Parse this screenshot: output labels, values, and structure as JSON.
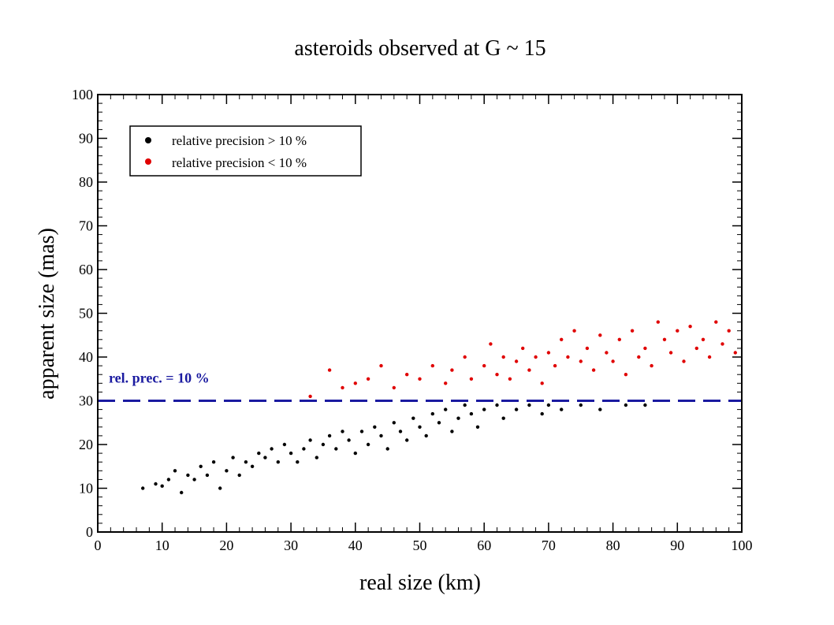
{
  "chart_data": {
    "type": "scatter",
    "title": "asteroids observed at G ~ 15",
    "xlabel": "real size   (km)",
    "ylabel": "apparent size  (mas)",
    "xlim": [
      0,
      100
    ],
    "ylim": [
      0,
      100
    ],
    "x_ticks": [
      "0",
      "10",
      "20",
      "30",
      "40",
      "50",
      "60",
      "70",
      "80",
      "90",
      "100"
    ],
    "y_ticks": [
      "0",
      "10",
      "20",
      "30",
      "40",
      "50",
      "60",
      "70",
      "80",
      "90",
      "100"
    ],
    "grid": false,
    "legend_position": "top-left",
    "series": [
      {
        "name": "relative precision > 10 %",
        "color": "#000000",
        "points": [
          [
            7,
            10
          ],
          [
            9,
            11
          ],
          [
            10,
            10.5
          ],
          [
            11,
            12
          ],
          [
            12,
            14
          ],
          [
            13,
            9
          ],
          [
            14,
            13
          ],
          [
            15,
            12
          ],
          [
            16,
            15
          ],
          [
            17,
            13
          ],
          [
            18,
            16
          ],
          [
            19,
            10
          ],
          [
            20,
            14
          ],
          [
            21,
            17
          ],
          [
            22,
            13
          ],
          [
            23,
            16
          ],
          [
            24,
            15
          ],
          [
            25,
            18
          ],
          [
            26,
            17
          ],
          [
            27,
            19
          ],
          [
            28,
            16
          ],
          [
            29,
            20
          ],
          [
            30,
            18
          ],
          [
            31,
            16
          ],
          [
            32,
            19
          ],
          [
            33,
            21
          ],
          [
            34,
            17
          ],
          [
            35,
            20
          ],
          [
            36,
            22
          ],
          [
            37,
            19
          ],
          [
            38,
            23
          ],
          [
            39,
            21
          ],
          [
            40,
            18
          ],
          [
            41,
            23
          ],
          [
            42,
            20
          ],
          [
            43,
            24
          ],
          [
            44,
            22
          ],
          [
            45,
            19
          ],
          [
            46,
            25
          ],
          [
            47,
            23
          ],
          [
            48,
            21
          ],
          [
            49,
            26
          ],
          [
            50,
            24
          ],
          [
            51,
            22
          ],
          [
            52,
            27
          ],
          [
            53,
            25
          ],
          [
            54,
            28
          ],
          [
            55,
            23
          ],
          [
            56,
            26
          ],
          [
            57,
            29
          ],
          [
            58,
            27
          ],
          [
            59,
            24
          ],
          [
            60,
            28
          ],
          [
            62,
            29
          ],
          [
            63,
            26
          ],
          [
            65,
            28
          ],
          [
            67,
            29
          ],
          [
            69,
            27
          ],
          [
            70,
            29
          ],
          [
            72,
            28
          ],
          [
            75,
            29
          ],
          [
            78,
            28
          ],
          [
            82,
            29
          ],
          [
            85,
            29
          ]
        ]
      },
      {
        "name": "relative precision < 10 %",
        "color": "#e00000",
        "points": [
          [
            33,
            31
          ],
          [
            36,
            37
          ],
          [
            38,
            33
          ],
          [
            40,
            34
          ],
          [
            42,
            35
          ],
          [
            44,
            38
          ],
          [
            46,
            33
          ],
          [
            48,
            36
          ],
          [
            50,
            35
          ],
          [
            52,
            38
          ],
          [
            54,
            34
          ],
          [
            55,
            37
          ],
          [
            57,
            40
          ],
          [
            58,
            35
          ],
          [
            60,
            38
          ],
          [
            61,
            43
          ],
          [
            62,
            36
          ],
          [
            63,
            40
          ],
          [
            64,
            35
          ],
          [
            65,
            39
          ],
          [
            66,
            42
          ],
          [
            67,
            37
          ],
          [
            68,
            40
          ],
          [
            69,
            34
          ],
          [
            70,
            41
          ],
          [
            71,
            38
          ],
          [
            72,
            44
          ],
          [
            73,
            40
          ],
          [
            74,
            46
          ],
          [
            75,
            39
          ],
          [
            76,
            42
          ],
          [
            77,
            37
          ],
          [
            78,
            45
          ],
          [
            79,
            41
          ],
          [
            80,
            39
          ],
          [
            81,
            44
          ],
          [
            82,
            36
          ],
          [
            83,
            46
          ],
          [
            84,
            40
          ],
          [
            85,
            42
          ],
          [
            86,
            38
          ],
          [
            87,
            48
          ],
          [
            88,
            44
          ],
          [
            89,
            41
          ],
          [
            90,
            46
          ],
          [
            91,
            39
          ],
          [
            92,
            47
          ],
          [
            93,
            42
          ],
          [
            94,
            44
          ],
          [
            95,
            40
          ],
          [
            96,
            48
          ],
          [
            97,
            43
          ],
          [
            98,
            46
          ],
          [
            99,
            41
          ]
        ]
      }
    ],
    "reference_line": {
      "y": 30,
      "label": "rel. prec. = 10 %",
      "color": "#1a1aa0",
      "style": "dashed"
    }
  }
}
